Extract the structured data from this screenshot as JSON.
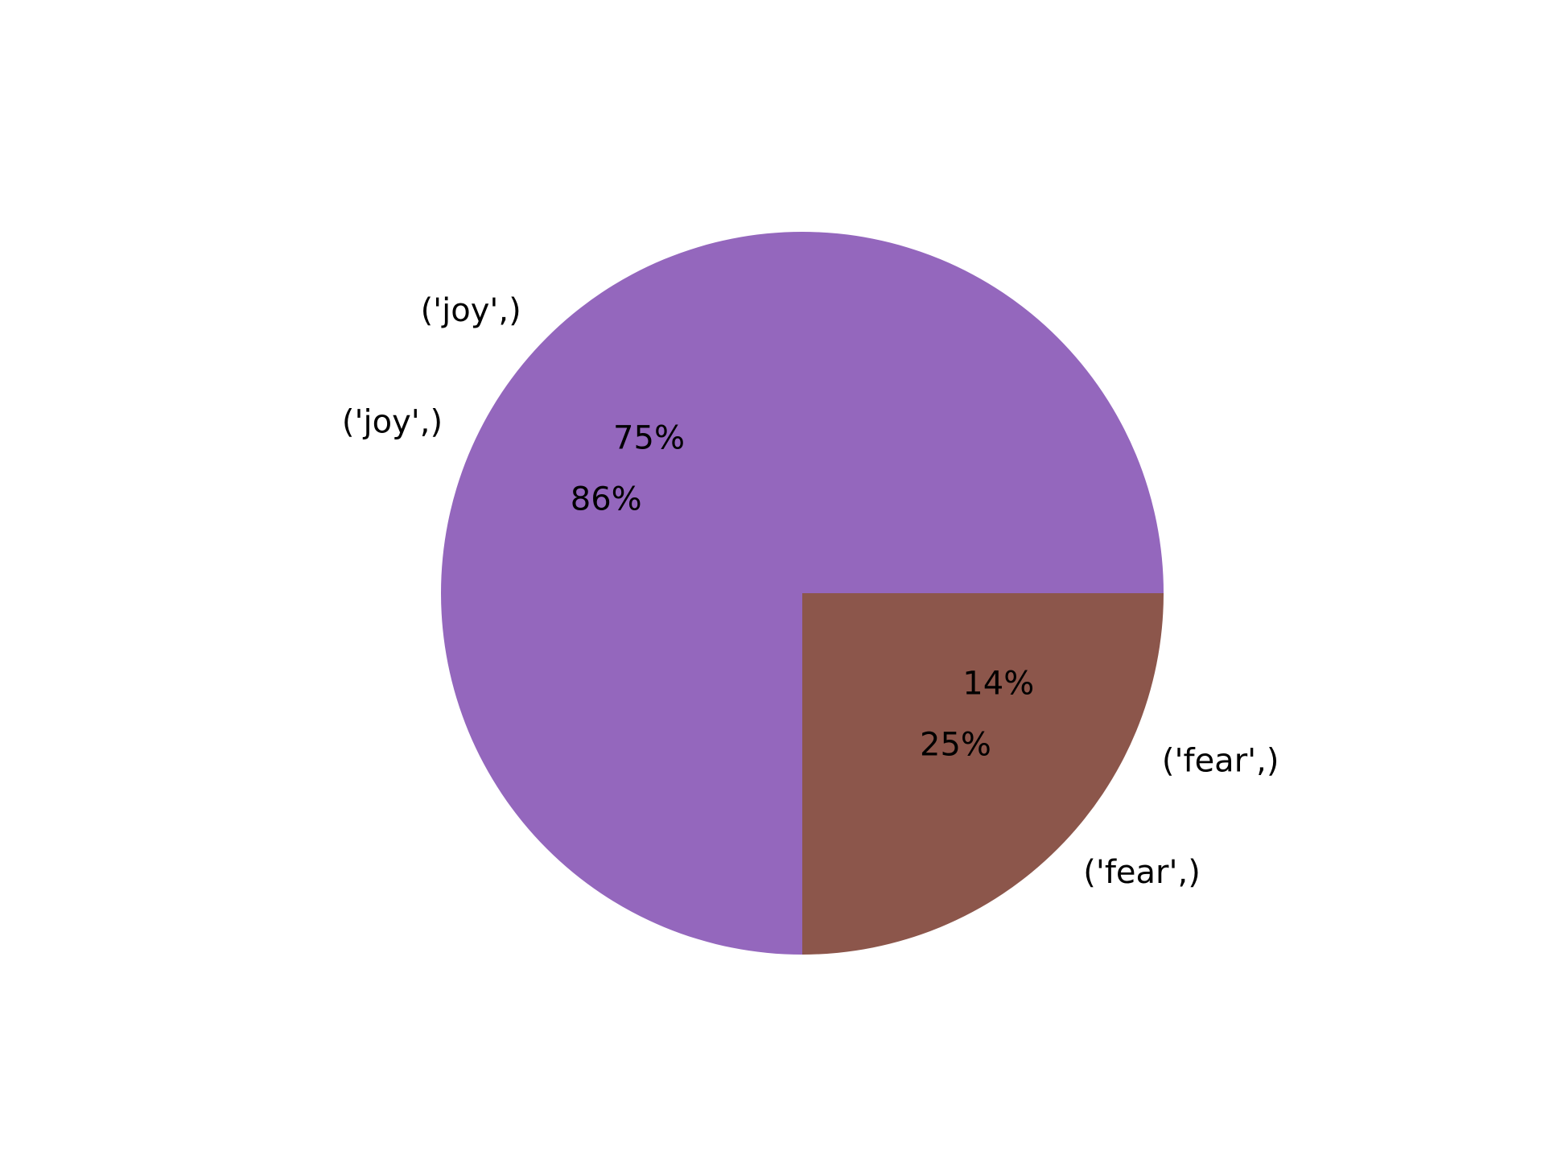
{
  "chart_data": [
    {
      "type": "pie",
      "title": "",
      "slices": [
        {
          "label": "('joy',)",
          "value": 75,
          "display": "75%",
          "color": "#9467bd"
        },
        {
          "label": "('fear',)",
          "value": 25,
          "display": "25%",
          "color": "#8c564b"
        }
      ],
      "start": "right",
      "direction": "counterclockwise"
    },
    {
      "type": "pie",
      "title": "",
      "slices": [
        {
          "label": "('joy',)",
          "value": 86,
          "display": "86%"
        },
        {
          "label": "('fear',)",
          "value": 14,
          "display": "14%"
        }
      ],
      "note": "labels only are visible; slices are drawn behind the first pie"
    }
  ]
}
